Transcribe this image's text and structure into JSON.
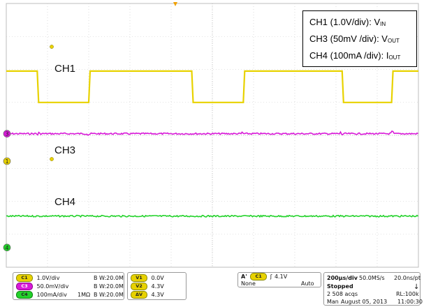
{
  "chart_data": {
    "type": "line",
    "title": "",
    "xlabel": "",
    "ylabel": "",
    "grid": true,
    "divisions": {
      "x": 10,
      "y": 8
    },
    "x_unit": "µs",
    "x_range": [
      0,
      2000
    ],
    "series": [
      {
        "name": "CH1",
        "color": "#e8d200",
        "kind": "square",
        "high_div": 5.95,
        "low_div": 5.0,
        "transitions_us": [
          0,
          150,
          400,
          900,
          1150,
          1630,
          1870
        ],
        "start_high": true
      },
      {
        "name": "CH3",
        "color": "#d81ad8",
        "kind": "flat",
        "level_div": 4.05,
        "spikes_us": [
          150,
          400,
          1150,
          1630,
          1870
        ]
      },
      {
        "name": "CH4",
        "color": "#22d22a",
        "kind": "flat",
        "level_div": 1.55
      }
    ]
  },
  "scope": {
    "markers": {
      "ch3": "3",
      "ch1": "1",
      "ch4": "4",
      "trigger": "T"
    },
    "channel_labels": {
      "ch1": "CH1",
      "ch3": "CH3",
      "ch4": "CH4"
    },
    "legend": {
      "line1_pre": "CH1 (1.0V/div): V",
      "line1_sub": "IN",
      "line2_pre": "CH3 (50mV /div): V",
      "line2_sub": "OUT",
      "line3_pre": "CH4 (100mA /div): I",
      "line3_sub": "OUT"
    }
  },
  "status": {
    "ch1": {
      "badge": "C1",
      "scale": "1.0V/div",
      "bw": "B W:20.0M",
      "color": "#e8d200"
    },
    "ch3": {
      "badge": "C3",
      "scale": "50.0mV/div",
      "bw": "B W:20.0M",
      "color": "#d81ad8"
    },
    "ch4": {
      "badge": "C4",
      "scale": "100mA/div",
      "impedance": "1MΩ",
      "bw": "B W:20.0M",
      "color": "#22d22a"
    },
    "cursors": {
      "v1_badge": "V1",
      "v1": "0.0V",
      "v2_badge": "V2",
      "v2": "4.3V",
      "dv_badge": "ΔV",
      "dv": "4.3V"
    },
    "trigger": {
      "a": "A'",
      "badge": "C1",
      "level": "4.1V",
      "coupling": "None",
      "mode": "Auto"
    },
    "acquisition": {
      "timebase": "200µs/div",
      "sample_rate": "50.0MS/s",
      "resolution": "20.0ns/pt",
      "state": "Stopped",
      "acqs": "2 508 acqs",
      "record_length": "RL:100k",
      "mode": "Man",
      "date": "August 05, 2013",
      "time": "11:00:30"
    }
  }
}
